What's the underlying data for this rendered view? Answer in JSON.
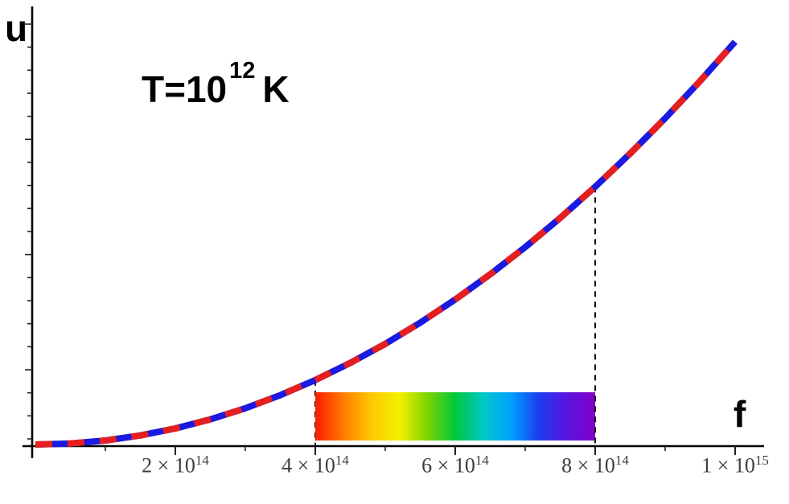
{
  "title": {
    "base": "T=10",
    "exponent": "12",
    "suffix": "K"
  },
  "chart_data": {
    "type": "line",
    "title": "T=10^12 K",
    "xlabel": "f",
    "ylabel": "u",
    "xlim": [
      0,
      1000000000000000.0
    ],
    "ylim": [
      0,
      1
    ],
    "grid": false,
    "legend": "none",
    "x_ticks": [
      {
        "value": 200000000000000.0,
        "text": "2 × 10",
        "exp": "14"
      },
      {
        "value": 400000000000000.0,
        "text": "4 × 10",
        "exp": "14"
      },
      {
        "value": 600000000000000.0,
        "text": "6 × 10",
        "exp": "14"
      },
      {
        "value": 800000000000000.0,
        "text": "8 × 10",
        "exp": "14"
      },
      {
        "value": 1000000000000000.0,
        "text": "1 × 10",
        "exp": "15"
      }
    ],
    "x_minor_ticks": [
      100000000000000.0,
      300000000000000.0,
      500000000000000.0,
      700000000000000.0,
      900000000000000.0
    ],
    "y_minor_tick_count": 19,
    "series": [
      {
        "name": "spectral energy density u(f) at T=10^12 K (solid blue)",
        "color": "#1a1ae0",
        "style": "solid",
        "x": [
          0,
          50000000000000.0,
          100000000000000.0,
          150000000000000.0,
          200000000000000.0,
          250000000000000.0,
          300000000000000.0,
          350000000000000.0,
          400000000000000.0,
          450000000000000.0,
          500000000000000.0,
          550000000000000.0,
          600000000000000.0,
          650000000000000.0,
          700000000000000.0,
          750000000000000.0,
          800000000000000.0,
          850000000000000.0,
          900000000000000.0,
          950000000000000.0,
          1000000000000000.0
        ],
        "y": [
          0,
          0.0025,
          0.01,
          0.0225,
          0.04,
          0.0625,
          0.09,
          0.1225,
          0.16,
          0.2025,
          0.25,
          0.3025,
          0.36,
          0.4225,
          0.49,
          0.5625,
          0.64,
          0.7225,
          0.81,
          0.9025,
          1
        ]
      },
      {
        "name": "coinciding overlay curve (dashed red)",
        "color": "#e51f1f",
        "style": "dashed",
        "x": [
          0,
          50000000000000.0,
          100000000000000.0,
          150000000000000.0,
          200000000000000.0,
          250000000000000.0,
          300000000000000.0,
          350000000000000.0,
          400000000000000.0,
          450000000000000.0,
          500000000000000.0,
          550000000000000.0,
          600000000000000.0,
          650000000000000.0,
          700000000000000.0,
          750000000000000.0,
          800000000000000.0,
          850000000000000.0,
          900000000000000.0,
          950000000000000.0,
          1000000000000000.0
        ],
        "y": [
          0,
          0.0025,
          0.01,
          0.0225,
          0.04,
          0.0625,
          0.09,
          0.1225,
          0.16,
          0.2025,
          0.25,
          0.3025,
          0.36,
          0.4225,
          0.49,
          0.5625,
          0.64,
          0.7225,
          0.81,
          0.9025,
          1
        ]
      }
    ],
    "annotations": {
      "temperature_label": "T=10^12 K",
      "dashed_guides_x": [
        400000000000000.0,
        800000000000000.0
      ],
      "guide_color": "#111111",
      "visible_spectrum_band": {
        "x_start": 400000000000000.0,
        "x_end": 800000000000000.0,
        "gradient": [
          "#ff1c00",
          "#ff7a00",
          "#ffc800",
          "#f5f000",
          "#7fd400",
          "#00c83c",
          "#00c8c8",
          "#00a0ff",
          "#1e3cf0",
          "#5a14e0",
          "#8200c8"
        ]
      }
    }
  }
}
